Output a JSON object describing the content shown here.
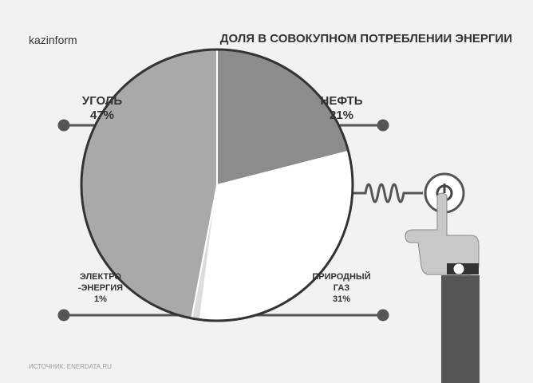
{
  "chart_data": {
    "type": "pie",
    "logo": "kazinform",
    "title": "ДОЛЯ В СОВОКУПНОМ ПОТРЕБЛЕНИИ ЭНЕРГИИ",
    "source": "ИСТОЧНИК: ENERDATA.RU",
    "categories": [
      "НЕФТЬ",
      "ПРИРОДНЫЙ\nГАЗ",
      "ЭЛЕКТРО\n-ЭНЕРГИЯ",
      "УГОЛЬ"
    ],
    "values": [
      21,
      31,
      1,
      47
    ],
    "value_labels": [
      "21%",
      "31%",
      "1%",
      "47%"
    ],
    "colors": [
      "#8c8c8c",
      "#ffffff",
      "#dcdcdc",
      "#a9a9a9"
    ]
  }
}
